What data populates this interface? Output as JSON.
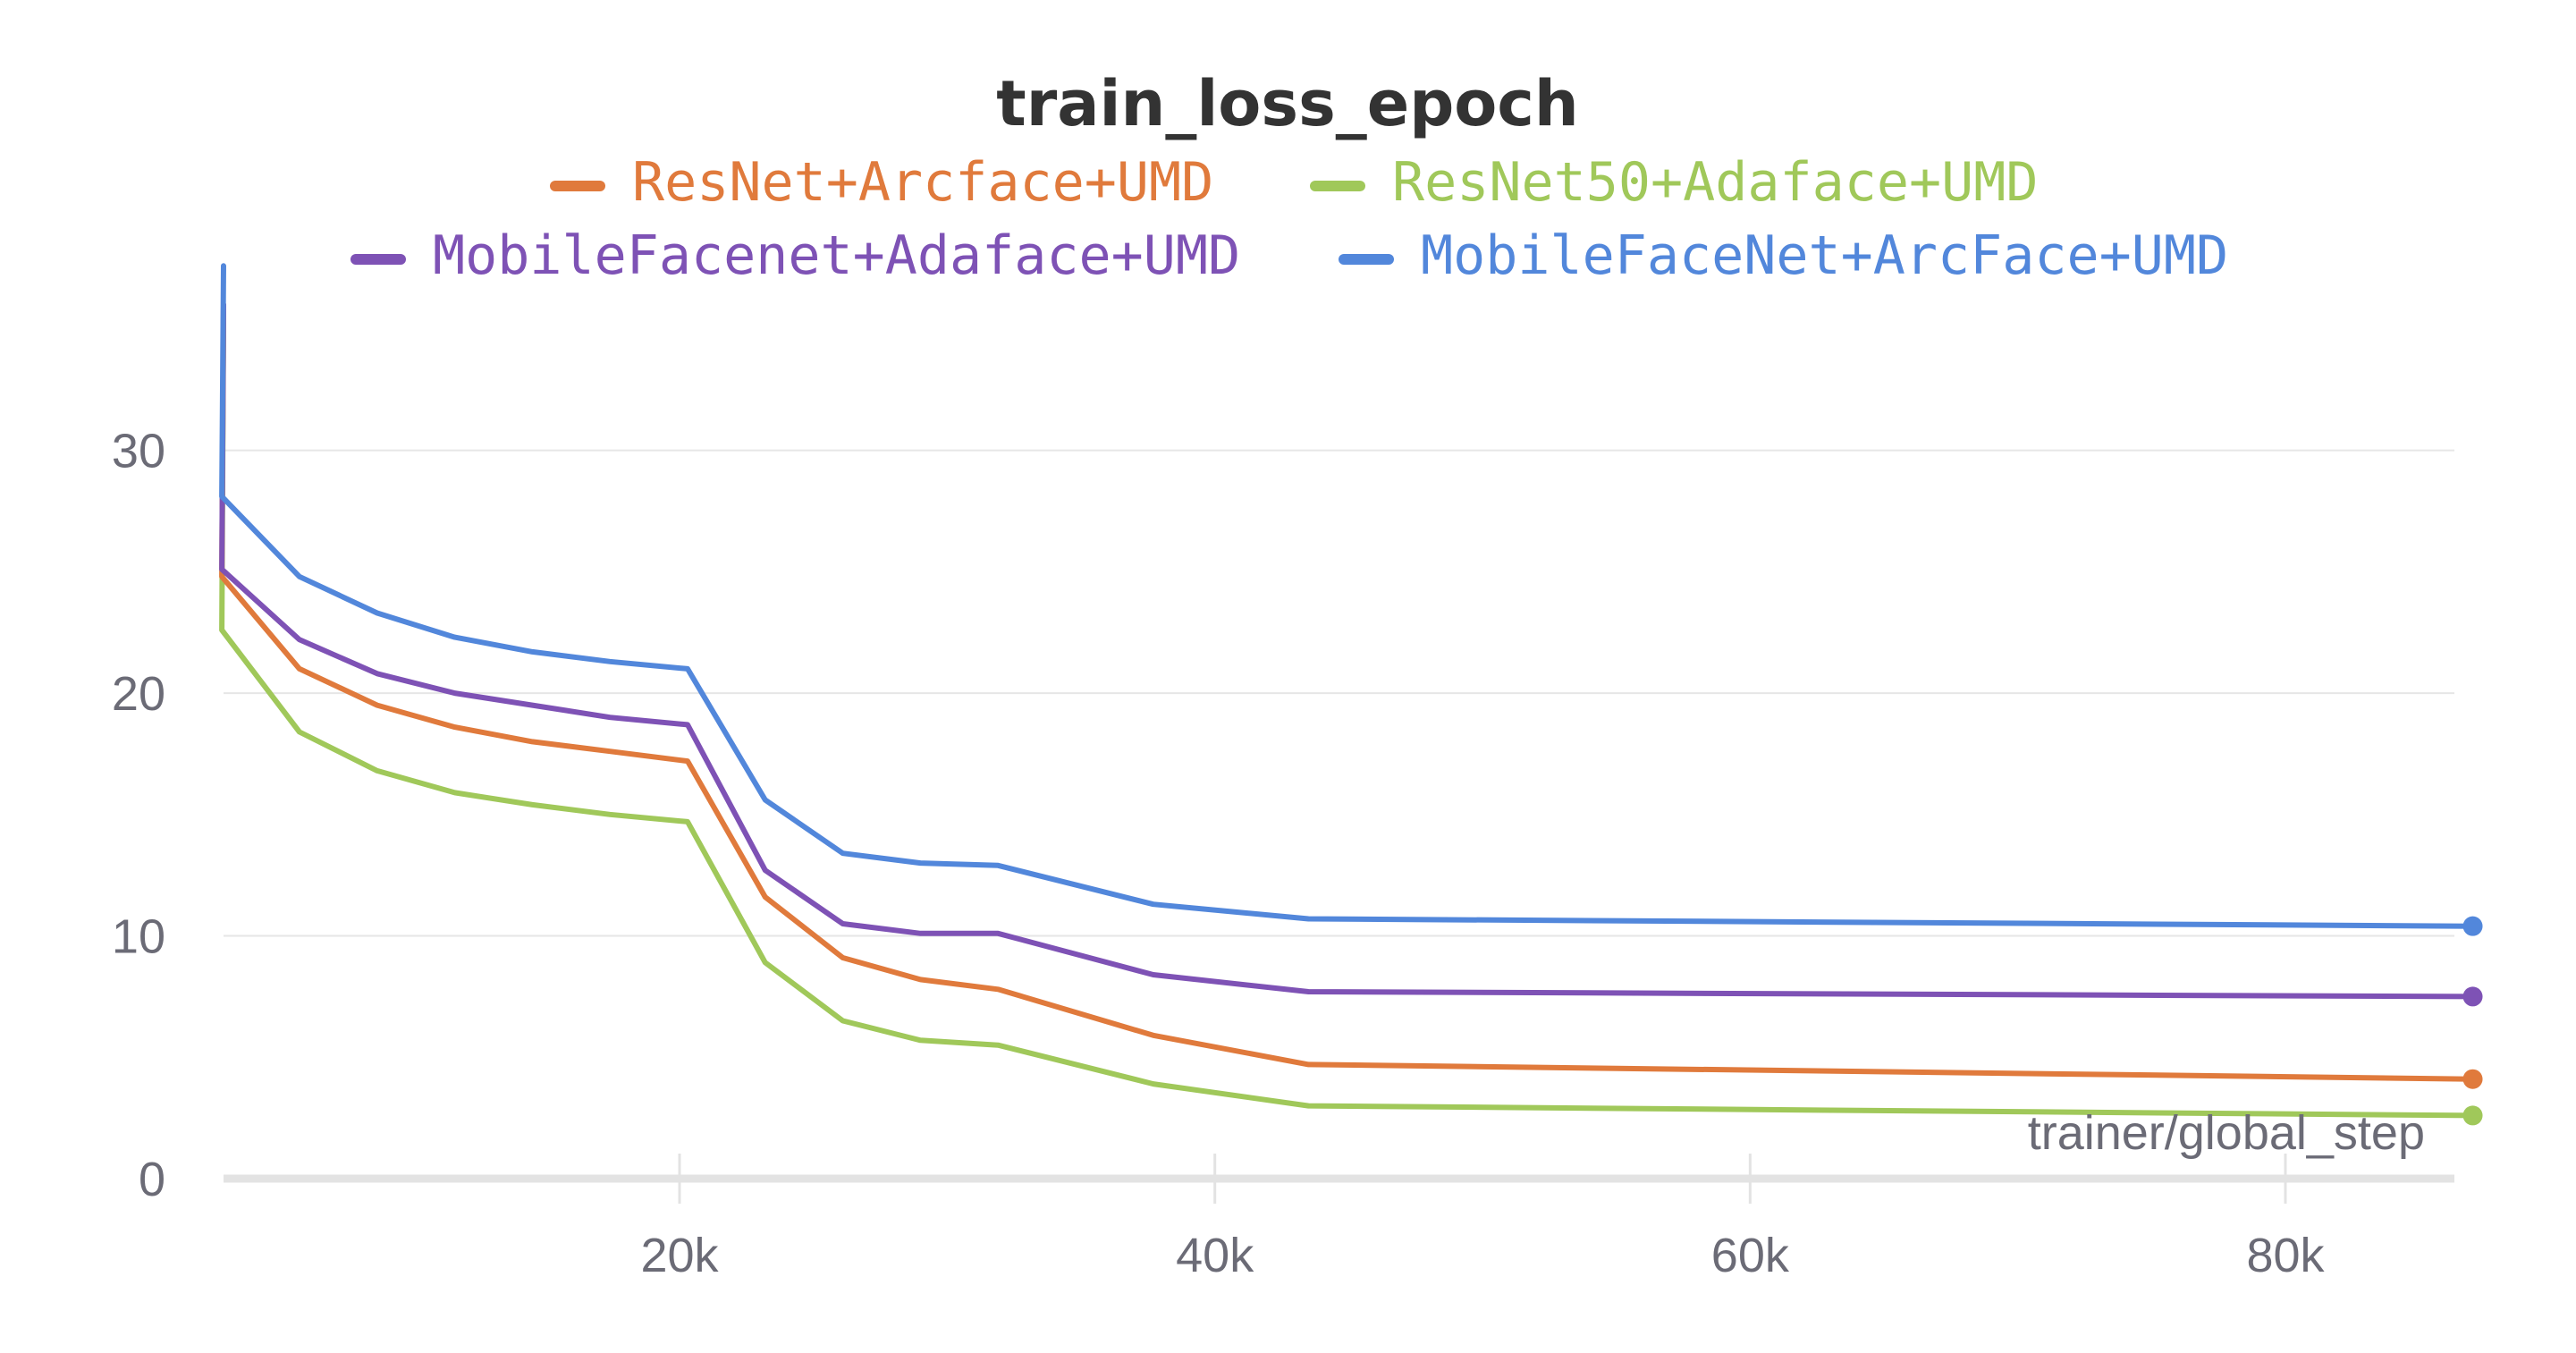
{
  "chart_data": {
    "type": "line",
    "title": "train_loss_epoch",
    "xlabel": "trainer/global_step",
    "ylabel": "",
    "xlim": [
      0,
      87000
    ],
    "ylim": [
      0,
      37.5
    ],
    "x_ticks": [
      {
        "value": 20000,
        "label": "20k"
      },
      {
        "value": 40000,
        "label": "40k"
      },
      {
        "value": 60000,
        "label": "60k"
      },
      {
        "value": 80000,
        "label": "80k"
      }
    ],
    "y_ticks": [
      {
        "value": 0,
        "label": "0"
      },
      {
        "value": 10,
        "label": "10"
      },
      {
        "value": 20,
        "label": "20"
      },
      {
        "value": 30,
        "label": "30"
      }
    ],
    "grid": true,
    "legend_position": "top",
    "x": [
      0,
      2900,
      5800,
      8700,
      11600,
      14500,
      17400,
      20300,
      23200,
      26100,
      29000,
      31900,
      37700,
      43500,
      87000
    ],
    "series": [
      {
        "name": "ResNet+Arcface+UMD",
        "color": "#e07a3c",
        "values": [
          36.0,
          24.8,
          21.0,
          19.5,
          18.6,
          18.0,
          17.6,
          17.2,
          11.6,
          9.1,
          8.2,
          7.8,
          5.9,
          4.7,
          4.1
        ]
      },
      {
        "name": "ResNet50+Adaface+UMD",
        "color": "#a0c85a",
        "values": [
          35.6,
          22.6,
          18.4,
          16.8,
          15.9,
          15.4,
          15.0,
          14.7,
          8.9,
          6.5,
          5.7,
          5.5,
          3.9,
          3.0,
          2.6
        ]
      },
      {
        "name": "MobileFacenet+Adaface+UMD",
        "color": "#7e52b5",
        "values": [
          36.0,
          25.1,
          22.2,
          20.8,
          20.0,
          19.5,
          19.0,
          18.7,
          12.7,
          10.5,
          10.1,
          10.1,
          8.4,
          7.7,
          7.5
        ]
      },
      {
        "name": "MobileFaceNet+ArcFace+UMD",
        "color": "#5287db",
        "values": [
          37.6,
          28.1,
          24.8,
          23.3,
          22.3,
          21.7,
          21.3,
          21.0,
          15.6,
          13.4,
          13.0,
          12.9,
          11.3,
          10.7,
          10.4
        ]
      }
    ],
    "x_first": 0,
    "note_x_units": ""
  }
}
